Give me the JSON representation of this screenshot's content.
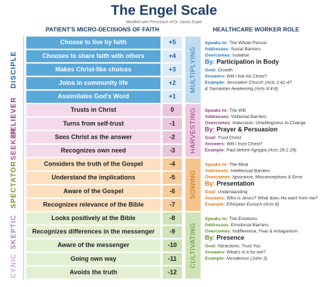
{
  "header": {
    "title": "The Engel Scale",
    "subtitle": "Modified with Permission of Dr. James Engel",
    "left_heading": "PATIENT'S MICRO-DECISIONS OF FAITH",
    "right_heading": "HEALTHCARE WORKER ROLE"
  },
  "stages": [
    "DISCIPLE",
    "BELIEVER",
    "SEEKER",
    "SPECTATOR",
    "SKEPTIC",
    "CYNIC"
  ],
  "decisions": [
    {
      "text": "Choose to live by faith",
      "score": "+5"
    },
    {
      "text": "Chooses to share faith with others",
      "score": "+4"
    },
    {
      "text": "Makes Christ-like choices",
      "score": "+3"
    },
    {
      "text": "Joins in community life",
      "score": "+2"
    },
    {
      "text": "Assimilates God's Word",
      "score": "+1"
    },
    {
      "text": "Trusts in Christ",
      "score": "0"
    },
    {
      "text": "Turns from self-trust",
      "score": "-1"
    },
    {
      "text": "Sees Christ as the answer",
      "score": "-2"
    },
    {
      "text": "Recognizes own need",
      "score": "-3"
    },
    {
      "text": "Considers the truth of the Gospel",
      "score": "-4"
    },
    {
      "text": "Understand the implications",
      "score": "-5"
    },
    {
      "text": "Aware of the Gospel",
      "score": "-6"
    },
    {
      "text": "Recognizes relevance of the Bible",
      "score": "-7"
    },
    {
      "text": "Looks positively at the Bible",
      "score": "-8"
    },
    {
      "text": "Recognizes differences in the messenger",
      "score": "-9"
    },
    {
      "text": "Aware of the messenger",
      "score": "-10"
    },
    {
      "text": "Going own way",
      "score": "-11"
    },
    {
      "text": "Avoids the truth",
      "score": "-12"
    }
  ],
  "roles": [
    {
      "name": "MULTIPLYING",
      "lines": [
        {
          "label": "Speaks to:",
          "text": "The Whole Person"
        },
        {
          "label": "Addresses:",
          "text": "Social Barriers"
        },
        {
          "label": "Overcomes:",
          "text": "Isolation"
        },
        {
          "label": "By:",
          "text": "Participation in Body"
        },
        {
          "label": "Goal:",
          "text": "Growth"
        },
        {
          "label": "Answers:",
          "text": "Will I live for Christ?"
        },
        {
          "label": "Example:",
          "text": "Jerusalem Church (Acts 2:41-47"
        },
        {
          "text": "& Samaritan Awakening (Acts 8:4-8)"
        }
      ]
    },
    {
      "name": "HARVESTING",
      "lines": [
        {
          "label": "Speaks to:",
          "text": "The Will"
        },
        {
          "label": "Addresses:",
          "text": "Volitional Barriers"
        },
        {
          "label": "Overcomes:",
          "text": "Indecision, Unwillingness to Change"
        },
        {
          "label": "By:",
          "text": "Prayer & Persuasion"
        },
        {
          "label": "Goal:",
          "text": "Trust Christ"
        },
        {
          "label": "Answers:",
          "text": "Will I trust Christ?"
        },
        {
          "label": "Example:",
          "text": "Paul before Agrippa (Acts 26:1-29)"
        }
      ]
    },
    {
      "name": "SOWING",
      "lines": [
        {
          "label": "Speaks to:",
          "text": "The Mind"
        },
        {
          "label": "Addresses:",
          "text": "Intellectual Barriers"
        },
        {
          "label": "Overcomes:",
          "text": "Ignorance, Misconceptions & Error"
        },
        {
          "label": "By:",
          "text": "Presentation"
        },
        {
          "label": "Goal:",
          "text": "Understanding"
        },
        {
          "label": "Answers:",
          "text": "Who is Jesus? What does He want from me?"
        },
        {
          "label": "Example:",
          "text": "Ethiopian Eunuch (Acts 8)"
        }
      ]
    },
    {
      "name": "CULTIVATING",
      "lines": [
        {
          "label": "Speaks to:",
          "text": "The Emotions"
        },
        {
          "label": "Addresses:",
          "text": "Emotional Barriers"
        },
        {
          "label": "Overcomes:",
          "text": "Indifference, Fear & Antagonism"
        },
        {
          "label": "By:",
          "text": "Presence"
        },
        {
          "label": "Goal:",
          "text": "Attractions, Trust You"
        },
        {
          "label": "Answers:",
          "text": "What's in it for me?"
        },
        {
          "label": "Example:",
          "text": "Nicodemus (John 3)"
        }
      ]
    }
  ]
}
